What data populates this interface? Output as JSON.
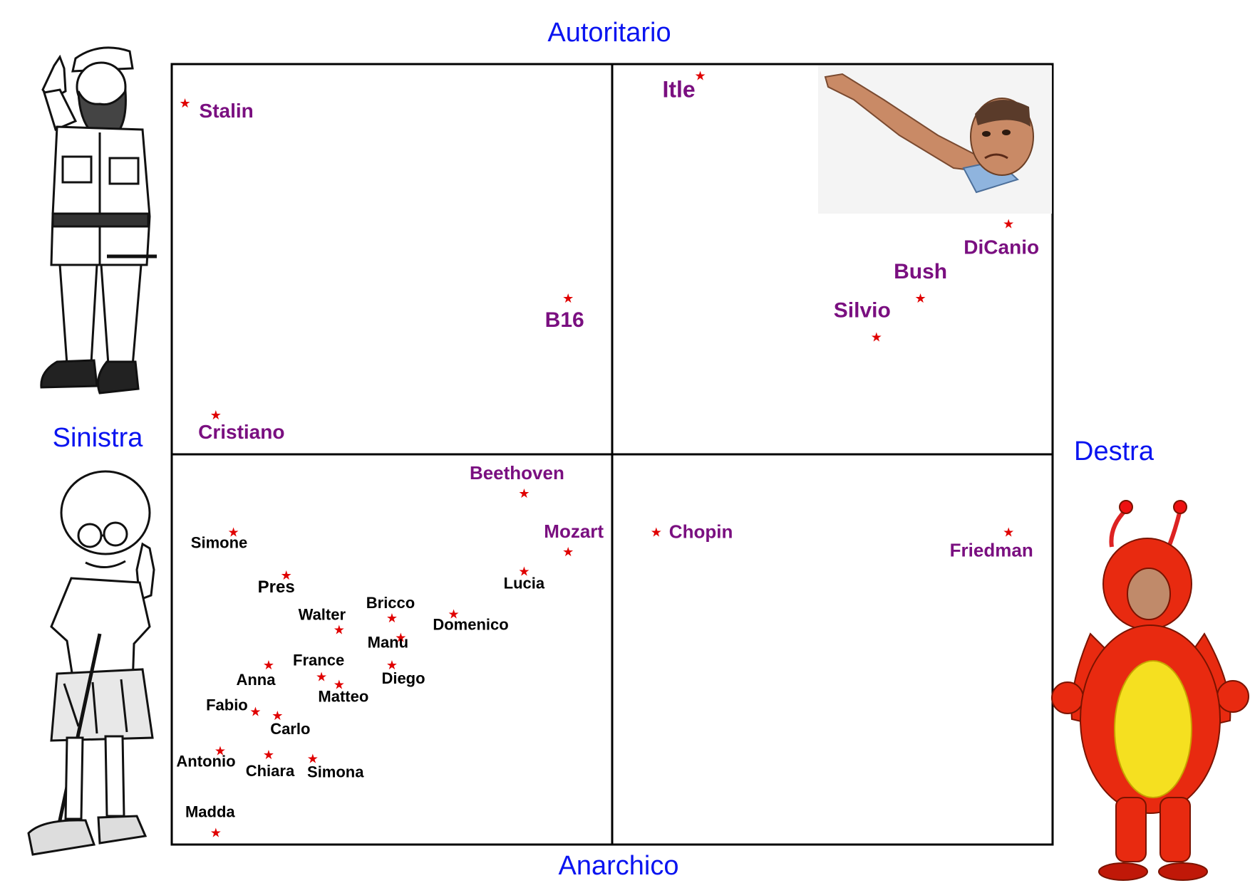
{
  "chart_data": {
    "type": "scatter",
    "axes": {
      "top": "Autoritario",
      "bottom": "Anarchico",
      "left": "Sinistra",
      "right": "Destra"
    },
    "xlim": [
      -10,
      10
    ],
    "ylim": [
      -10,
      10
    ],
    "grid": false,
    "colors": {
      "axis_text": "#0a14f0",
      "marker": "#e00000",
      "famous_label": "#7a0f80",
      "member_label": "#000000",
      "frame": "#000000"
    },
    "points": [
      {
        "label": "Stalin",
        "x": -9.7,
        "y": 9.0,
        "group": "famous"
      },
      {
        "label": "Itle",
        "x": 2.0,
        "y": 9.7,
        "group": "famous"
      },
      {
        "label": "DiCanio",
        "x": 9.0,
        "y": 5.9,
        "group": "famous"
      },
      {
        "label": "Bush",
        "x": 7.0,
        "y": 4.0,
        "group": "famous"
      },
      {
        "label": "Silvio",
        "x": 6.0,
        "y": 3.0,
        "group": "famous"
      },
      {
        "label": "B16",
        "x": -1.0,
        "y": 4.0,
        "group": "famous"
      },
      {
        "label": "Cristiano",
        "x": -9.0,
        "y": 1.0,
        "group": "famous"
      },
      {
        "label": "Beethoven",
        "x": -2.0,
        "y": -1.0,
        "group": "famous"
      },
      {
        "label": "Mozart",
        "x": -1.0,
        "y": -2.5,
        "group": "famous"
      },
      {
        "label": "Chopin",
        "x": 1.0,
        "y": -2.0,
        "group": "famous"
      },
      {
        "label": "Friedman",
        "x": 9.0,
        "y": -2.0,
        "group": "famous"
      },
      {
        "label": "Simone",
        "x": -8.6,
        "y": -2.0,
        "group": "member"
      },
      {
        "label": "Pres",
        "x": -7.4,
        "y": -3.1,
        "group": "member"
      },
      {
        "label": "Lucia",
        "x": -2.0,
        "y": -3.0,
        "group": "member"
      },
      {
        "label": "Walter",
        "x": -6.2,
        "y": -4.5,
        "group": "member"
      },
      {
        "label": "Bricco",
        "x": -5.0,
        "y": -4.2,
        "group": "member"
      },
      {
        "label": "Manu",
        "x": -4.8,
        "y": -4.7,
        "group": "member"
      },
      {
        "label": "Domenico",
        "x": -3.6,
        "y": -4.1,
        "group": "member"
      },
      {
        "label": "Anna",
        "x": -7.8,
        "y": -5.4,
        "group": "member"
      },
      {
        "label": "France",
        "x": -6.6,
        "y": -5.7,
        "group": "member"
      },
      {
        "label": "Matteo",
        "x": -6.2,
        "y": -5.9,
        "group": "member"
      },
      {
        "label": "Diego",
        "x": -5.0,
        "y": -5.4,
        "group": "member"
      },
      {
        "label": "Fabio",
        "x": -8.1,
        "y": -6.6,
        "group": "member"
      },
      {
        "label": "Carlo",
        "x": -7.6,
        "y": -6.7,
        "group": "member"
      },
      {
        "label": "Antonio",
        "x": -8.9,
        "y": -7.6,
        "group": "member"
      },
      {
        "label": "Chiara",
        "x": -7.8,
        "y": -7.7,
        "group": "member"
      },
      {
        "label": "Simona",
        "x": -6.8,
        "y": -7.8,
        "group": "member"
      },
      {
        "label": "Madda",
        "x": -9.0,
        "y": -9.7,
        "group": "member"
      }
    ]
  },
  "illustrations": {
    "top_left": "bearded-soldier-cartoon",
    "bottom_left": "gandhi-cartoon",
    "top_right": "salute-photo",
    "bottom_right": "red-costume-photo"
  }
}
